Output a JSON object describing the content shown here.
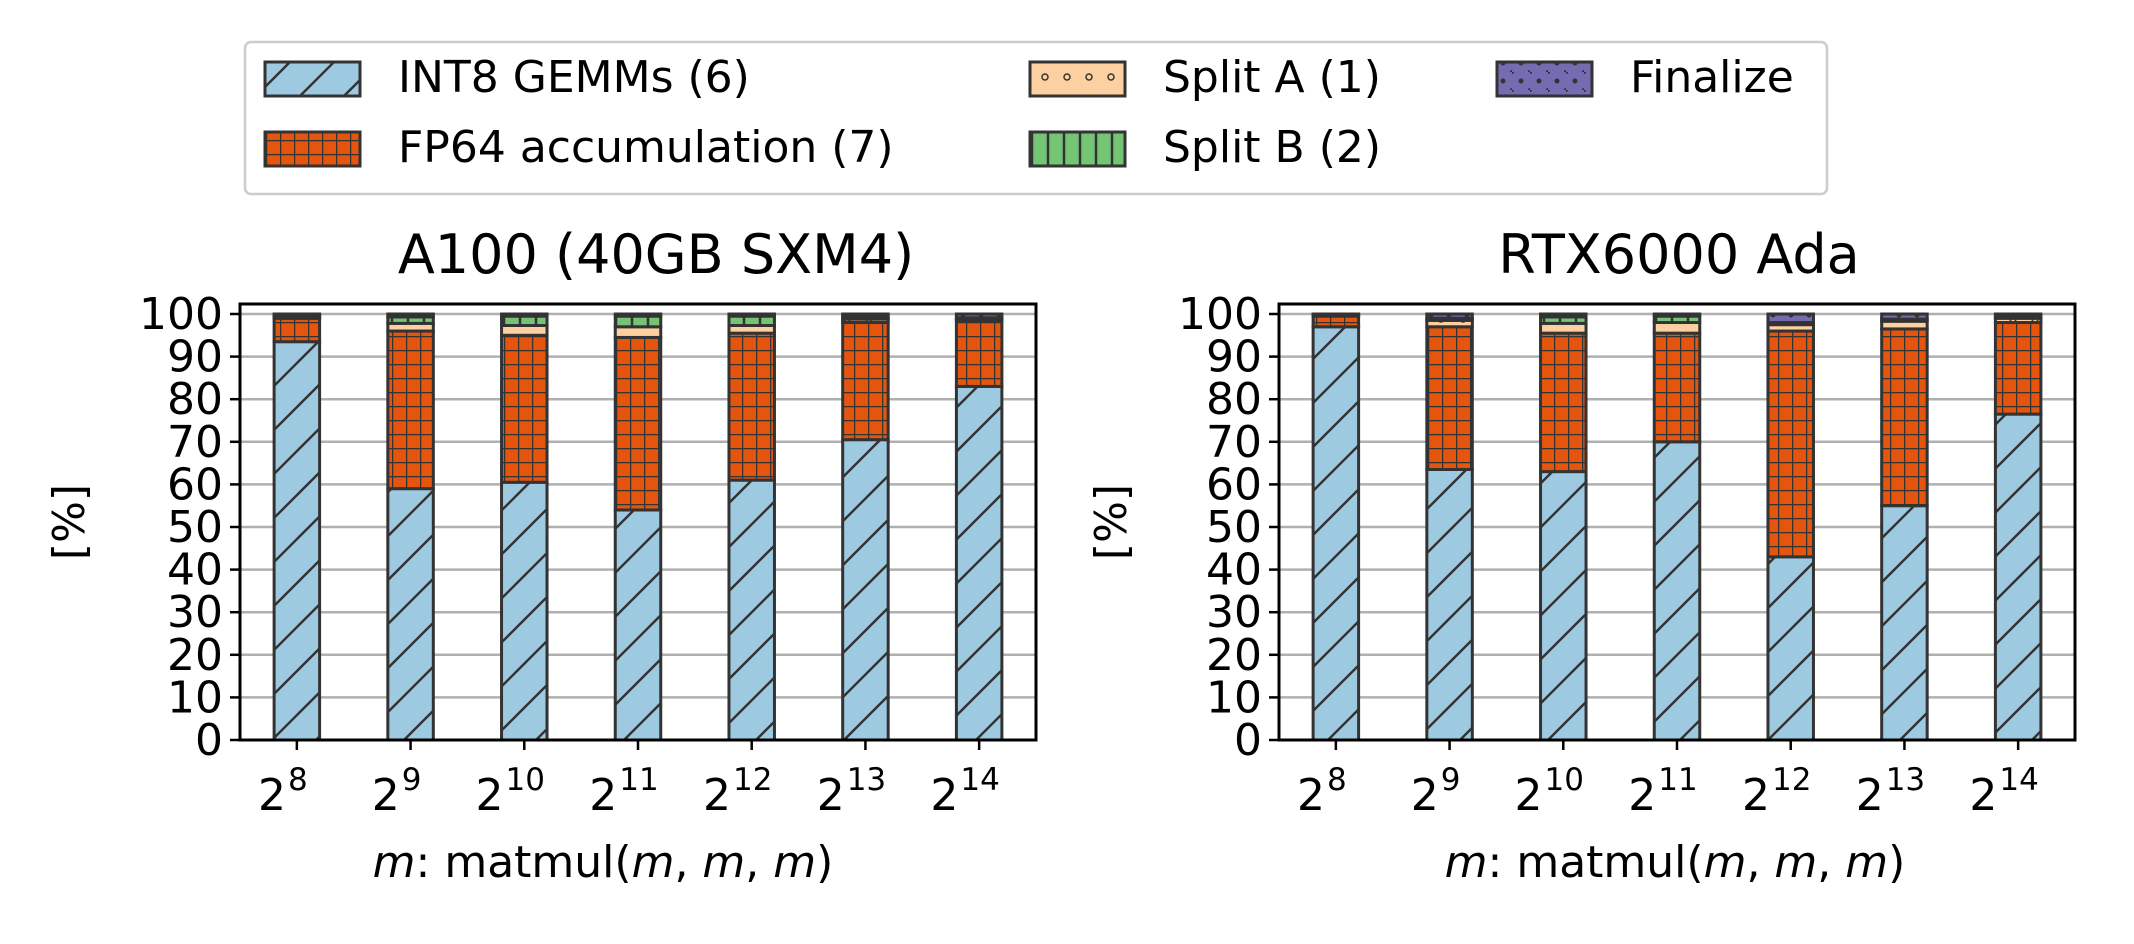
{
  "legend": {
    "location": "top-center",
    "ncol": 3
  },
  "series_styles": [
    {
      "name": "INT8 GEMMs (6)",
      "color": "#9ecae1",
      "hatch": "diagonal"
    },
    {
      "name": "FP64 accumulation (7)",
      "color": "#e6550d",
      "hatch": "grid"
    },
    {
      "name": "Split A (1)",
      "color": "#fdd0a2",
      "hatch": "circle"
    },
    {
      "name": "Split B (2)",
      "color": "#74c476",
      "hatch": "vertical"
    },
    {
      "name": "Finalize",
      "color": "#756bb1",
      "hatch": "star"
    }
  ],
  "chart_data": [
    {
      "type": "bar",
      "stacked": true,
      "title": "A100 (40GB SXM4)",
      "xlabel": "m: matmul(m, m, m)",
      "ylabel": "[%]",
      "ylim": [
        0,
        100
      ],
      "yticks": [
        "0",
        "10",
        "20",
        "30",
        "40",
        "50",
        "60",
        "70",
        "80",
        "90",
        "100"
      ],
      "grid": "y",
      "categories": [
        {
          "base": "2",
          "exp": "8"
        },
        {
          "base": "2",
          "exp": "9"
        },
        {
          "base": "2",
          "exp": "10"
        },
        {
          "base": "2",
          "exp": "11"
        },
        {
          "base": "2",
          "exp": "12"
        },
        {
          "base": "2",
          "exp": "13"
        },
        {
          "base": "2",
          "exp": "14"
        }
      ],
      "series": [
        {
          "name": "INT8 GEMMs (6)",
          "values": [
            93.5,
            59.0,
            60.5,
            54.0,
            61.0,
            70.5,
            83.0
          ]
        },
        {
          "name": "FP64 accumulation (7)",
          "values": [
            5.5,
            37.0,
            34.5,
            40.5,
            34.5,
            27.5,
            15.5
          ]
        },
        {
          "name": "Split A (1)",
          "values": [
            0.3,
            1.8,
            2.3,
            2.5,
            1.8,
            0.8,
            0.3
          ]
        },
        {
          "name": "Split B (2)",
          "values": [
            0.4,
            1.5,
            2.2,
            2.5,
            2.2,
            0.5,
            0.3
          ]
        },
        {
          "name": "Finalize",
          "values": [
            0.3,
            0.7,
            0.5,
            0.5,
            0.5,
            0.7,
            0.9
          ]
        }
      ]
    },
    {
      "type": "bar",
      "stacked": true,
      "title": "RTX6000 Ada",
      "xlabel": "m: matmul(m, m, m)",
      "ylabel": "[%]",
      "ylim": [
        0,
        100
      ],
      "yticks": [
        "0",
        "10",
        "20",
        "30",
        "40",
        "50",
        "60",
        "70",
        "80",
        "90",
        "100"
      ],
      "grid": "y",
      "categories": [
        {
          "base": "2",
          "exp": "8"
        },
        {
          "base": "2",
          "exp": "9"
        },
        {
          "base": "2",
          "exp": "10"
        },
        {
          "base": "2",
          "exp": "11"
        },
        {
          "base": "2",
          "exp": "12"
        },
        {
          "base": "2",
          "exp": "13"
        },
        {
          "base": "2",
          "exp": "14"
        }
      ],
      "series": [
        {
          "name": "INT8 GEMMs (6)",
          "values": [
            97.0,
            63.5,
            63.0,
            70.0,
            43.0,
            55.0,
            76.5
          ]
        },
        {
          "name": "FP64 accumulation (7)",
          "values": [
            2.5,
            33.5,
            32.5,
            25.5,
            53.0,
            41.5,
            21.5
          ]
        },
        {
          "name": "Split A (1)",
          "values": [
            0.2,
            1.5,
            2.3,
            2.5,
            1.5,
            1.8,
            1.0
          ]
        },
        {
          "name": "Split B (2)",
          "values": [
            0.1,
            0.5,
            1.5,
            1.5,
            0.5,
            0.5,
            0.4
          ]
        },
        {
          "name": "Finalize",
          "values": [
            0.2,
            1.0,
            0.7,
            0.5,
            2.0,
            1.2,
            0.6
          ]
        }
      ]
    }
  ]
}
